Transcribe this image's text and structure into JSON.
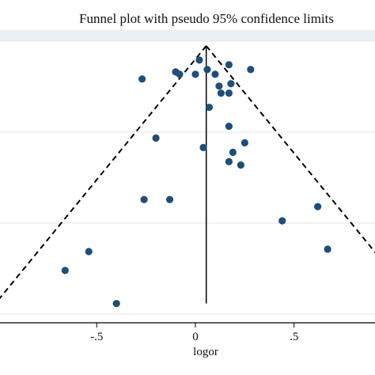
{
  "chart_data": {
    "type": "scatter",
    "title": "Funnel plot with pseudo 95% confidence limits",
    "xlabel": "logor",
    "ylabel": "",
    "xlim": [
      -0.99,
      0.91
    ],
    "ylim_se_inverted": [
      0,
      0.56
    ],
    "x_ticks": [
      -0.5,
      0,
      0.5
    ],
    "x_tick_labels": [
      "-.5",
      "0",
      ".5"
    ],
    "summary_estimate": 0.055,
    "grid": "horizontal",
    "colors": {
      "points": "#1f4e79",
      "lines": "#000000",
      "grid": "#e6e6e6"
    },
    "points": [
      {
        "x": 0.02,
        "se": 0.03
      },
      {
        "x": 0.17,
        "se": 0.04
      },
      {
        "x": 0.06,
        "se": 0.05
      },
      {
        "x": -0.1,
        "se": 0.055
      },
      {
        "x": -0.08,
        "se": 0.06
      },
      {
        "x": 0.0,
        "se": 0.06
      },
      {
        "x": 0.1,
        "se": 0.06
      },
      {
        "x": 0.28,
        "se": 0.05
      },
      {
        "x": -0.27,
        "se": 0.07
      },
      {
        "x": 0.12,
        "se": 0.085
      },
      {
        "x": 0.18,
        "se": 0.08
      },
      {
        "x": 0.17,
        "se": 0.1
      },
      {
        "x": 0.13,
        "se": 0.1
      },
      {
        "x": 0.07,
        "se": 0.13
      },
      {
        "x": 0.17,
        "se": 0.17
      },
      {
        "x": -0.2,
        "se": 0.195
      },
      {
        "x": 0.25,
        "se": 0.205
      },
      {
        "x": 0.04,
        "se": 0.215
      },
      {
        "x": 0.19,
        "se": 0.225
      },
      {
        "x": 0.17,
        "se": 0.245
      },
      {
        "x": 0.23,
        "se": 0.252
      },
      {
        "x": -0.26,
        "se": 0.325
      },
      {
        "x": -0.13,
        "se": 0.325
      },
      {
        "x": 0.62,
        "se": 0.34
      },
      {
        "x": 0.44,
        "se": 0.37
      },
      {
        "x": 0.67,
        "se": 0.43
      },
      {
        "x": -0.54,
        "se": 0.435
      },
      {
        "x": -0.66,
        "se": 0.475
      },
      {
        "x": -0.4,
        "se": 0.545
      }
    ]
  }
}
